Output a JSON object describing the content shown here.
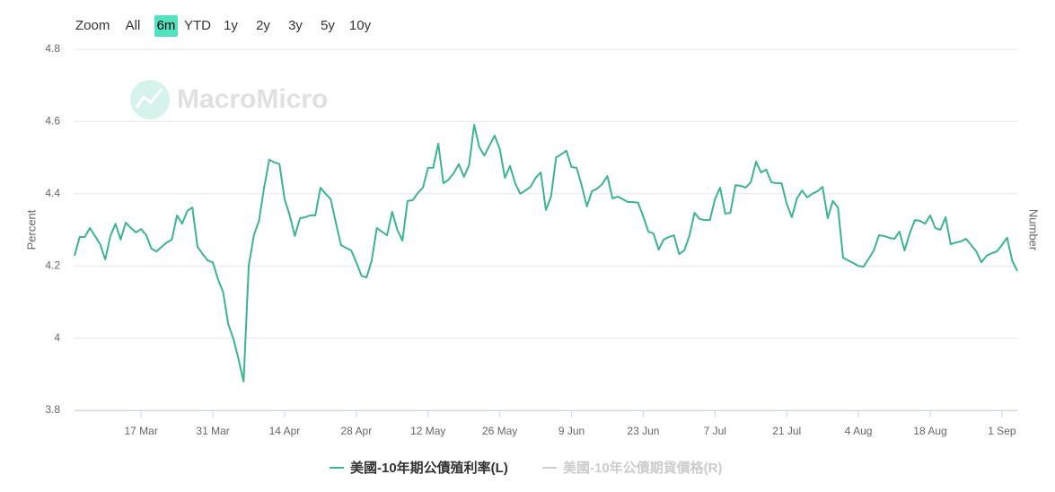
{
  "chart_data": {
    "type": "line",
    "range_selector": {
      "label": "Zoom",
      "buttons": [
        "All",
        "6m",
        "YTD",
        "1y",
        "2y",
        "3y",
        "5y",
        "10y"
      ],
      "selected": 1
    },
    "watermark": "MacroMicro",
    "ylabel": "Percent",
    "y2label": "Number",
    "ylim": [
      3.8,
      4.8
    ],
    "yticks": [
      3.8,
      4,
      4.2,
      4.4,
      4.6,
      4.8
    ],
    "grid": true,
    "xlim": [
      "4 Mar",
      "4 Sep"
    ],
    "xticks": [
      "17 Mar",
      "31 Mar",
      "14 Apr",
      "28 Apr",
      "12 May",
      "26 May",
      "9 Jun",
      "23 Jun",
      "7 Jul",
      "21 Jul",
      "4 Aug",
      "18 Aug",
      "1 Sep"
    ],
    "x": [
      "4 Mar",
      "5 Mar",
      "6 Mar",
      "7 Mar",
      "8 Mar",
      "9 Mar",
      "10 Mar",
      "11 Mar",
      "12 Mar",
      "13 Mar",
      "14 Mar",
      "15 Mar",
      "16 Mar",
      "17 Mar",
      "18 Mar",
      "19 Mar",
      "20 Mar",
      "21 Mar",
      "22 Mar",
      "23 Mar",
      "24 Mar",
      "25 Mar",
      "26 Mar",
      "27 Mar",
      "28 Mar",
      "29 Mar",
      "30 Mar",
      "31 Mar",
      "1 Apr",
      "2 Apr",
      "3 Apr",
      "4 Apr",
      "5 Apr",
      "6 Apr",
      "7 Apr",
      "8 Apr",
      "9 Apr",
      "10 Apr",
      "11 Apr",
      "12 Apr",
      "13 Apr",
      "14 Apr",
      "15 Apr",
      "16 Apr",
      "17 Apr",
      "18 Apr",
      "19 Apr",
      "20 Apr",
      "21 Apr",
      "22 Apr",
      "23 Apr",
      "24 Apr",
      "25 Apr",
      "26 Apr",
      "27 Apr",
      "28 Apr",
      "29 Apr",
      "30 Apr",
      "1 May",
      "2 May",
      "3 May",
      "4 May",
      "5 May",
      "6 May",
      "7 May",
      "8 May",
      "9 May",
      "10 May",
      "11 May",
      "12 May",
      "13 May",
      "14 May",
      "15 May",
      "16 May",
      "17 May",
      "18 May",
      "19 May",
      "20 May",
      "21 May",
      "22 May",
      "23 May",
      "24 May",
      "25 May",
      "26 May",
      "27 May",
      "28 May",
      "29 May",
      "30 May",
      "31 May",
      "1 Jun",
      "2 Jun",
      "3 Jun",
      "4 Jun",
      "5 Jun",
      "6 Jun",
      "7 Jun",
      "8 Jun",
      "9 Jun",
      "10 Jun",
      "11 Jun",
      "12 Jun",
      "13 Jun",
      "14 Jun",
      "15 Jun",
      "16 Jun",
      "17 Jun",
      "18 Jun",
      "19 Jun",
      "20 Jun",
      "21 Jun",
      "22 Jun",
      "23 Jun",
      "24 Jun",
      "25 Jun",
      "26 Jun",
      "27 Jun",
      "28 Jun",
      "29 Jun",
      "30 Jun",
      "1 Jul",
      "2 Jul",
      "3 Jul",
      "4 Jul",
      "5 Jul",
      "6 Jul",
      "7 Jul",
      "8 Jul",
      "9 Jul",
      "10 Jul",
      "11 Jul",
      "12 Jul",
      "13 Jul",
      "14 Jul",
      "15 Jul",
      "16 Jul",
      "17 Jul",
      "18 Jul",
      "19 Jul",
      "20 Jul",
      "21 Jul",
      "22 Jul",
      "23 Jul",
      "24 Jul",
      "25 Jul",
      "26 Jul",
      "27 Jul",
      "28 Jul",
      "29 Jul",
      "30 Jul",
      "31 Jul",
      "1 Aug",
      "2 Aug",
      "3 Aug",
      "4 Aug",
      "5 Aug",
      "6 Aug",
      "7 Aug",
      "8 Aug",
      "9 Aug",
      "10 Aug",
      "11 Aug",
      "12 Aug",
      "13 Aug",
      "14 Aug",
      "15 Aug",
      "16 Aug",
      "17 Aug",
      "18 Aug",
      "19 Aug",
      "20 Aug",
      "21 Aug",
      "22 Aug",
      "23 Aug",
      "24 Aug",
      "25 Aug",
      "26 Aug",
      "27 Aug",
      "28 Aug",
      "29 Aug",
      "30 Aug",
      "31 Aug",
      "1 Sep",
      "2 Sep",
      "3 Sep",
      "4 Sep"
    ],
    "series": [
      {
        "name": "美國-10年期公債殖利率(L)",
        "color": "#3cb493",
        "values": [
          4.228,
          4.28,
          4.28,
          4.305,
          4.283,
          4.26,
          4.218,
          4.283,
          4.317,
          4.273,
          4.32,
          4.305,
          4.293,
          4.302,
          4.285,
          4.248,
          4.24,
          4.253,
          4.265,
          4.273,
          4.34,
          4.317,
          4.352,
          4.362,
          4.253,
          4.233,
          4.215,
          4.21,
          4.163,
          4.128,
          4.039,
          3.999,
          3.942,
          3.88,
          4.2,
          4.285,
          4.325,
          4.417,
          4.494,
          4.487,
          4.482,
          4.385,
          4.34,
          4.283,
          4.332,
          4.335,
          4.34,
          4.34,
          4.417,
          4.4,
          4.385,
          4.32,
          4.258,
          4.25,
          4.243,
          4.21,
          4.173,
          4.168,
          4.215,
          4.305,
          4.295,
          4.285,
          4.35,
          4.3,
          4.27,
          4.38,
          4.382,
          4.402,
          4.417,
          4.472,
          4.472,
          4.539,
          4.429,
          4.439,
          4.457,
          4.482,
          4.447,
          4.479,
          4.591,
          4.529,
          4.506,
          4.534,
          4.561,
          4.524,
          4.444,
          4.477,
          4.429,
          4.4,
          4.409,
          4.419,
          4.444,
          4.459,
          4.355,
          4.392,
          4.501,
          4.509,
          4.519,
          4.474,
          4.472,
          4.422,
          4.365,
          4.407,
          4.414,
          4.427,
          4.449,
          4.387,
          4.392,
          4.385,
          4.377,
          4.377,
          4.375,
          4.337,
          4.295,
          4.29,
          4.245,
          4.273,
          4.28,
          4.285,
          4.233,
          4.243,
          4.283,
          4.347,
          4.33,
          4.327,
          4.327,
          4.385,
          4.417,
          4.345,
          4.347,
          4.424,
          4.422,
          4.417,
          4.432,
          4.489,
          4.459,
          4.467,
          4.432,
          4.429,
          4.429,
          4.372,
          4.335,
          4.387,
          4.409,
          4.39,
          4.4,
          4.407,
          4.419,
          4.332,
          4.38,
          4.362,
          4.223,
          4.215,
          4.208,
          4.2,
          4.198,
          4.22,
          4.243,
          4.285,
          4.283,
          4.278,
          4.275,
          4.295,
          4.243,
          4.29,
          4.327,
          4.325,
          4.317,
          4.34,
          4.305,
          4.3,
          4.335,
          4.26,
          4.265,
          4.268,
          4.275,
          4.258,
          4.24,
          4.21,
          4.228,
          4.235,
          4.24,
          4.258,
          4.278,
          4.215,
          4.186
        ]
      }
    ],
    "inactive_series": [
      {
        "name": "美國-10年公債期貨價格(R)",
        "color": "#cccccc"
      }
    ]
  }
}
